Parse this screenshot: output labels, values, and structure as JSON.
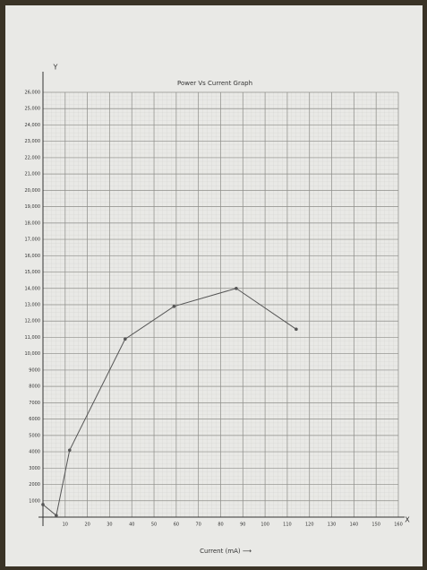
{
  "chart_data": {
    "type": "line",
    "title": "Power Vs Current Graph",
    "x_label": "Current (mA) ⟶",
    "annotations": [
      "Y",
      "X"
    ],
    "series": [
      {
        "name": "Power",
        "color": "#555555",
        "x": [
          0,
          6,
          12,
          37,
          59,
          87,
          114
        ],
        "values": [
          770,
          100,
          4100,
          10900,
          12900,
          14000,
          11500
        ]
      }
    ],
    "xlim": [
      0,
      160
    ],
    "xticks": [
      10,
      20,
      30,
      40,
      50,
      60,
      70,
      80,
      90,
      100,
      110,
      120,
      130,
      140,
      150,
      160
    ],
    "ylim": [
      0,
      26000
    ],
    "yticks": [
      {
        "value": 1000,
        "label": "1000"
      },
      {
        "value": 2000,
        "label": "2000"
      },
      {
        "value": 3000,
        "label": "3000"
      },
      {
        "value": 4000,
        "label": "4000"
      },
      {
        "value": 5000,
        "label": "5000"
      },
      {
        "value": 6000,
        "label": "6000"
      },
      {
        "value": 7000,
        "label": "7000"
      },
      {
        "value": 8000,
        "label": "8000"
      },
      {
        "value": 9000,
        "label": "9000"
      },
      {
        "value": 10000,
        "label": "10,000"
      },
      {
        "value": 11000,
        "label": "11,000"
      },
      {
        "value": 12000,
        "label": "12,000"
      },
      {
        "value": 13000,
        "label": "13,000"
      },
      {
        "value": 14000,
        "label": "14,000"
      },
      {
        "value": 15000,
        "label": "15,000"
      },
      {
        "value": 16000,
        "label": "16,000"
      },
      {
        "value": 17000,
        "label": "17,000"
      },
      {
        "value": 18000,
        "label": "18,000"
      },
      {
        "value": 19000,
        "label": "19,000"
      },
      {
        "value": 20000,
        "label": "20,000"
      },
      {
        "value": 21000,
        "label": "21,000"
      },
      {
        "value": 22000,
        "label": "22,000"
      },
      {
        "value": 23000,
        "label": "23,000"
      },
      {
        "value": 24000,
        "label": "24,000"
      },
      {
        "value": 25000,
        "label": "25,000"
      },
      {
        "value": 26000,
        "label": "26,000"
      }
    ],
    "grid": true
  }
}
